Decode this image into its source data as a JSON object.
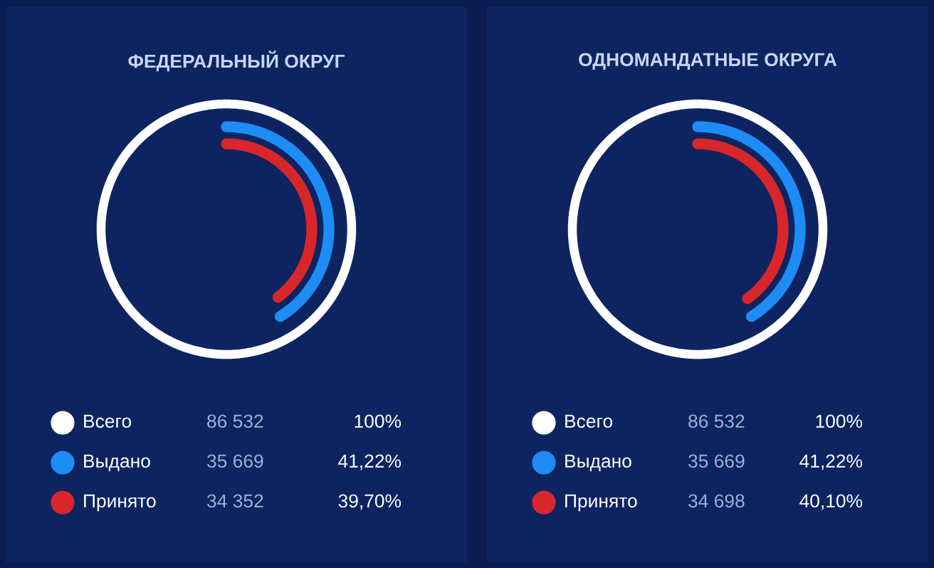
{
  "chart_data": [
    {
      "type": "other",
      "title": "ФЕДЕРАЛЬНЫЙ ОКРУГ",
      "categories": [
        "Всего",
        "Выдано",
        "Принято"
      ],
      "colors": [
        "#ffffff",
        "#1e8cf5",
        "#d9262b"
      ],
      "series": [
        {
          "values": [
            86532,
            35669,
            34352
          ],
          "value_labels": [
            "86 532",
            "35 669",
            "34 352"
          ]
        },
        {
          "values": [
            100,
            41.22,
            39.7
          ],
          "value_labels": [
            "100%",
            "41,22%",
            "39,70%"
          ]
        }
      ]
    },
    {
      "type": "other",
      "title": "ОДНОМАНДАТНЫЕ ОКРУГА",
      "categories": [
        "Всего",
        "Выдано",
        "Принято"
      ],
      "colors": [
        "#ffffff",
        "#1e8cf5",
        "#d9262b"
      ],
      "series": [
        {
          "values": [
            86532,
            35669,
            34698
          ],
          "value_labels": [
            "86 532",
            "35 669",
            "34 698"
          ]
        },
        {
          "values": [
            100,
            41.22,
            40.1
          ],
          "value_labels": [
            "100%",
            "41,22%",
            "40,10%"
          ]
        }
      ]
    }
  ]
}
